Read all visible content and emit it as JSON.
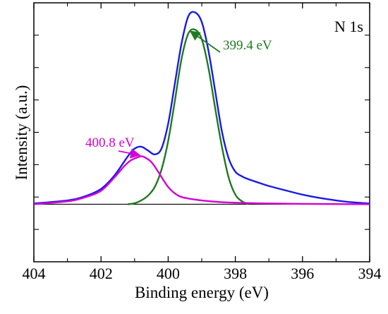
{
  "chart_data": {
    "type": "line",
    "title": "",
    "panel_label": "N 1s",
    "xlabel": "Binding energy (eV)",
    "ylabel": "Intensity (a.u.)",
    "x_reversed": true,
    "xlim": [
      404,
      394
    ],
    "ylim": [
      -0.3,
      1.05
    ],
    "x_ticks": [
      404,
      402,
      400,
      398,
      396,
      394
    ],
    "x_tick_labels": [
      "404",
      "402",
      "400",
      "398",
      "396",
      "394"
    ],
    "y_tick_labels_shown": false,
    "grid": false,
    "legend": "none",
    "baseline": 0.0,
    "series": [
      {
        "id": "envelope",
        "color": "#1a1ae6",
        "x": [
          404.0,
          403.0,
          402.5,
          402.0,
          401.6,
          401.2,
          401.0,
          400.8,
          400.6,
          400.4,
          400.2,
          400.0,
          399.8,
          399.6,
          399.4,
          399.2,
          399.0,
          398.8,
          398.6,
          398.4,
          398.2,
          398.0,
          397.8,
          397.6,
          397.3,
          397.0,
          396.5,
          396.0,
          395.5,
          395.0,
          394.5,
          394.0
        ],
        "values": [
          0.004,
          0.02,
          0.04,
          0.08,
          0.15,
          0.25,
          0.29,
          0.3,
          0.28,
          0.26,
          0.29,
          0.42,
          0.63,
          0.84,
          0.98,
          1.0,
          0.95,
          0.8,
          0.59,
          0.38,
          0.24,
          0.17,
          0.145,
          0.13,
          0.112,
          0.095,
          0.072,
          0.05,
          0.033,
          0.02,
          0.01,
          0.004
        ]
      },
      {
        "id": "peak-399.4",
        "color": "#1f7a1f",
        "x": [
          401.2,
          401.0,
          400.8,
          400.6,
          400.4,
          400.2,
          400.0,
          399.8,
          399.6,
          399.4,
          399.2,
          399.0,
          398.8,
          398.6,
          398.4,
          398.2,
          398.0,
          397.8,
          397.6
        ],
        "values": [
          0.0,
          0.005,
          0.02,
          0.045,
          0.09,
          0.18,
          0.33,
          0.54,
          0.76,
          0.89,
          0.91,
          0.86,
          0.71,
          0.5,
          0.3,
          0.14,
          0.05,
          0.015,
          0.0
        ]
      },
      {
        "id": "peak-400.8",
        "color": "#d400d4",
        "x": [
          404.0,
          403.0,
          402.5,
          402.0,
          401.6,
          401.3,
          401.1,
          400.9,
          400.8,
          400.7,
          400.5,
          400.3,
          400.0,
          399.7,
          399.4,
          399.0,
          398.5,
          398.0,
          397.0,
          396.0,
          395.0,
          394.0
        ],
        "values": [
          0.0,
          0.015,
          0.035,
          0.07,
          0.14,
          0.2,
          0.23,
          0.245,
          0.25,
          0.245,
          0.22,
          0.17,
          0.09,
          0.045,
          0.03,
          0.02,
          0.012,
          0.008,
          0.004,
          0.002,
          0.001,
          0.0
        ]
      }
    ],
    "annotations": [
      {
        "id": "anno-399",
        "text": "399.4 eV",
        "color": "#1f7a1f",
        "x": 399.3,
        "y": 0.89
      },
      {
        "id": "anno-400",
        "text": "400.8 eV",
        "color": "#d400d4",
        "x": 400.85,
        "y": 0.25
      }
    ]
  }
}
